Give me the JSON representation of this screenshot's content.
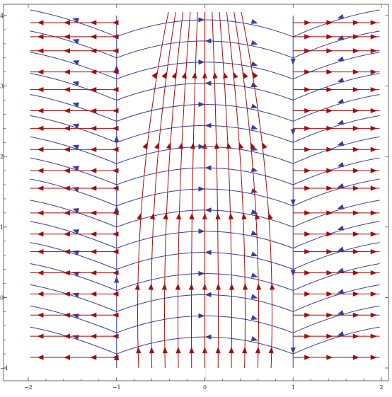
{
  "chart_data": {
    "type": "streamplot",
    "title": "",
    "xlabel": "",
    "ylabel": "",
    "xlim": [
      -2,
      2
    ],
    "ylim": [
      -1.1,
      4.1
    ],
    "x_ticks": [
      "−2",
      "−1",
      "0",
      "1",
      "2"
    ],
    "y_ticks": [
      "−1",
      "0",
      "1",
      "2",
      "3",
      "4"
    ],
    "x_tick_values": [
      -2,
      -1,
      0,
      1,
      2
    ],
    "y_tick_values": [
      -1,
      0,
      1,
      2,
      3,
      4
    ],
    "grid": false,
    "legend": "none",
    "series": [
      {
        "field": "horizontal-then-vertical family",
        "color": "#a80a0a",
        "horizontal_rows": [
          -0.85,
          -0.55,
          -0.25,
          0.05,
          0.35,
          0.65,
          0.9,
          1.2,
          1.55,
          1.8,
          2.1,
          2.4,
          2.65,
          2.95,
          3.2,
          3.5,
          3.7,
          3.9
        ],
        "vertical_columns": [
          -0.75,
          -0.6,
          -0.45,
          -0.3,
          -0.15,
          0,
          0.15,
          0.3,
          0.45,
          0.6,
          0.75
        ]
      },
      {
        "field": "arc family",
        "color": "#3c3c9a",
        "curve_heights": [
          -0.6,
          -0.3,
          0,
          0.3,
          0.6,
          0.9,
          1.2,
          1.5,
          1.8,
          2.1,
          2.4,
          2.7,
          3.0,
          3.3,
          3.6,
          3.9
        ]
      }
    ]
  }
}
